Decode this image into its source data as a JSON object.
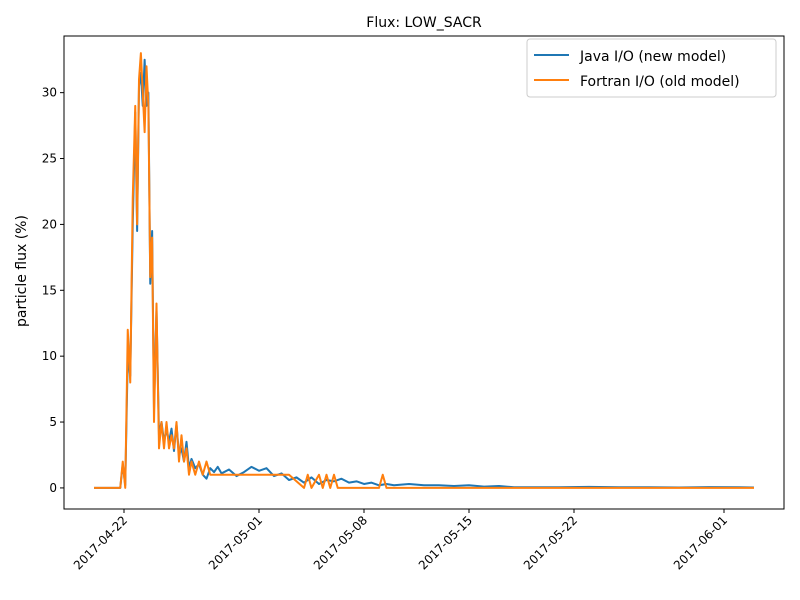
{
  "chart_data": {
    "type": "line",
    "title": "Flux: LOW_SACR",
    "xlabel": "",
    "ylabel": "particle flux (%)",
    "x_range": [
      "2017-04-18",
      "2017-06-05"
    ],
    "ylim": [
      -1.6,
      34.3
    ],
    "grid": false,
    "legend_position": "top-right",
    "x_ticks": [
      "2017-04-22",
      "2017-05-01",
      "2017-05-08",
      "2017-05-15",
      "2017-05-22",
      "2017-06-01"
    ],
    "y_ticks": [
      0,
      5,
      10,
      15,
      20,
      25,
      30
    ],
    "colors": {
      "java": "#1f77b4",
      "fortran": "#ff7f0e"
    },
    "series": [
      {
        "name": "Java I/O (new model)",
        "points": [
          [
            "2017-04-20 00:00",
            0
          ],
          [
            "2017-04-21 18:00",
            0
          ],
          [
            "2017-04-21 22:00",
            1.8
          ],
          [
            "2017-04-22 02:00",
            0.2
          ],
          [
            "2017-04-22 06:00",
            10
          ],
          [
            "2017-04-22 10:00",
            8.5
          ],
          [
            "2017-04-22 14:00",
            20
          ],
          [
            "2017-04-22 18:00",
            28.5
          ],
          [
            "2017-04-22 21:00",
            19.5
          ],
          [
            "2017-04-23 00:00",
            30.5
          ],
          [
            "2017-04-23 03:00",
            31.5
          ],
          [
            "2017-04-23 06:00",
            29
          ],
          [
            "2017-04-23 09:00",
            32.5
          ],
          [
            "2017-04-23 12:00",
            29
          ],
          [
            "2017-04-23 15:00",
            30
          ],
          [
            "2017-04-23 18:00",
            15.5
          ],
          [
            "2017-04-23 21:00",
            19.5
          ],
          [
            "2017-04-24 00:00",
            6
          ],
          [
            "2017-04-24 04:00",
            13.5
          ],
          [
            "2017-04-24 08:00",
            4
          ],
          [
            "2017-04-24 12:00",
            5
          ],
          [
            "2017-04-24 16:00",
            3.5
          ],
          [
            "2017-04-24 20:00",
            4.5
          ],
          [
            "2017-04-25 00:00",
            3.5
          ],
          [
            "2017-04-25 04:00",
            4.5
          ],
          [
            "2017-04-25 08:00",
            2.8
          ],
          [
            "2017-04-25 12:00",
            4.8
          ],
          [
            "2017-04-25 16:00",
            2.5
          ],
          [
            "2017-04-25 20:00",
            3
          ],
          [
            "2017-04-26 00:00",
            2
          ],
          [
            "2017-04-26 04:00",
            3.5
          ],
          [
            "2017-04-26 08:00",
            1.5
          ],
          [
            "2017-04-26 12:00",
            2.2
          ],
          [
            "2017-04-26 18:00",
            1.5
          ],
          [
            "2017-04-27 00:00",
            1.8
          ],
          [
            "2017-04-27 06:00",
            1.0
          ],
          [
            "2017-04-27 12:00",
            0.7
          ],
          [
            "2017-04-27 18:00",
            1.5
          ],
          [
            "2017-04-28 00:00",
            1.2
          ],
          [
            "2017-04-28 06:00",
            1.6
          ],
          [
            "2017-04-28 12:00",
            1.1
          ],
          [
            "2017-04-29 00:00",
            1.4
          ],
          [
            "2017-04-29 12:00",
            0.9
          ],
          [
            "2017-04-30 00:00",
            1.2
          ],
          [
            "2017-04-30 12:00",
            1.6
          ],
          [
            "2017-05-01 00:00",
            1.3
          ],
          [
            "2017-05-01 12:00",
            1.5
          ],
          [
            "2017-05-02 00:00",
            0.9
          ],
          [
            "2017-05-02 12:00",
            1.1
          ],
          [
            "2017-05-03 00:00",
            0.6
          ],
          [
            "2017-05-03 12:00",
            0.8
          ],
          [
            "2017-05-04 00:00",
            0.4
          ],
          [
            "2017-05-04 12:00",
            0.8
          ],
          [
            "2017-05-05 00:00",
            0.3
          ],
          [
            "2017-05-05 12:00",
            0.6
          ],
          [
            "2017-05-06 00:00",
            0.5
          ],
          [
            "2017-05-06 12:00",
            0.7
          ],
          [
            "2017-05-07 00:00",
            0.4
          ],
          [
            "2017-05-07 12:00",
            0.5
          ],
          [
            "2017-05-08 00:00",
            0.3
          ],
          [
            "2017-05-08 12:00",
            0.4
          ],
          [
            "2017-05-09 00:00",
            0.2
          ],
          [
            "2017-05-09 12:00",
            0.3
          ],
          [
            "2017-05-10 00:00",
            0.2
          ],
          [
            "2017-05-11 00:00",
            0.3
          ],
          [
            "2017-05-12 00:00",
            0.2
          ],
          [
            "2017-05-13 00:00",
            0.2
          ],
          [
            "2017-05-14 00:00",
            0.15
          ],
          [
            "2017-05-15 00:00",
            0.2
          ],
          [
            "2017-05-16 00:00",
            0.1
          ],
          [
            "2017-05-17 00:00",
            0.15
          ],
          [
            "2017-05-18 00:00",
            0.05
          ],
          [
            "2017-05-19 00:00",
            0.05
          ],
          [
            "2017-05-21 00:00",
            0.05
          ],
          [
            "2017-05-23 00:00",
            0.08
          ],
          [
            "2017-05-25 00:00",
            0.05
          ],
          [
            "2017-05-27 00:00",
            0.05
          ],
          [
            "2017-05-29 00:00",
            0.03
          ],
          [
            "2017-05-31 00:00",
            0.06
          ],
          [
            "2017-06-02 00:00",
            0.05
          ],
          [
            "2017-06-03 00:00",
            0.03
          ]
        ]
      },
      {
        "name": "Fortran I/O (old model)",
        "points": [
          [
            "2017-04-20 00:00",
            0
          ],
          [
            "2017-04-21 18:00",
            0
          ],
          [
            "2017-04-21 22:00",
            2
          ],
          [
            "2017-04-22 02:00",
            0
          ],
          [
            "2017-04-22 06:00",
            12
          ],
          [
            "2017-04-22 10:00",
            8
          ],
          [
            "2017-04-22 14:00",
            22
          ],
          [
            "2017-04-22 18:00",
            29
          ],
          [
            "2017-04-22 21:00",
            20
          ],
          [
            "2017-04-23 00:00",
            31
          ],
          [
            "2017-04-23 03:00",
            33
          ],
          [
            "2017-04-23 06:00",
            30
          ],
          [
            "2017-04-23 09:00",
            27
          ],
          [
            "2017-04-23 12:00",
            32
          ],
          [
            "2017-04-23 15:00",
            29
          ],
          [
            "2017-04-23 18:00",
            16
          ],
          [
            "2017-04-23 21:00",
            19
          ],
          [
            "2017-04-24 00:00",
            5
          ],
          [
            "2017-04-24 04:00",
            14
          ],
          [
            "2017-04-24 08:00",
            3
          ],
          [
            "2017-04-24 12:00",
            5
          ],
          [
            "2017-04-24 16:00",
            3
          ],
          [
            "2017-04-24 20:00",
            5
          ],
          [
            "2017-04-25 00:00",
            3
          ],
          [
            "2017-04-25 04:00",
            4
          ],
          [
            "2017-04-25 08:00",
            3
          ],
          [
            "2017-04-25 12:00",
            5
          ],
          [
            "2017-04-25 16:00",
            2
          ],
          [
            "2017-04-25 20:00",
            4
          ],
          [
            "2017-04-26 00:00",
            2
          ],
          [
            "2017-04-26 04:00",
            3
          ],
          [
            "2017-04-26 08:00",
            1
          ],
          [
            "2017-04-26 12:00",
            2
          ],
          [
            "2017-04-26 18:00",
            1
          ],
          [
            "2017-04-27 00:00",
            2
          ],
          [
            "2017-04-27 06:00",
            1
          ],
          [
            "2017-04-27 12:00",
            2
          ],
          [
            "2017-04-27 18:00",
            1
          ],
          [
            "2017-05-02 00:00",
            1
          ],
          [
            "2017-05-03 00:00",
            1
          ],
          [
            "2017-05-04 00:00",
            0
          ],
          [
            "2017-05-04 06:00",
            1
          ],
          [
            "2017-05-04 12:00",
            0
          ],
          [
            "2017-05-05 00:00",
            1
          ],
          [
            "2017-05-05 06:00",
            0
          ],
          [
            "2017-05-05 12:00",
            1
          ],
          [
            "2017-05-05 18:00",
            0
          ],
          [
            "2017-05-06 00:00",
            1
          ],
          [
            "2017-05-06 06:00",
            0
          ],
          [
            "2017-05-09 00:00",
            0
          ],
          [
            "2017-05-09 06:00",
            1
          ],
          [
            "2017-05-09 12:00",
            0
          ],
          [
            "2017-06-03 00:00",
            0
          ]
        ]
      }
    ]
  }
}
